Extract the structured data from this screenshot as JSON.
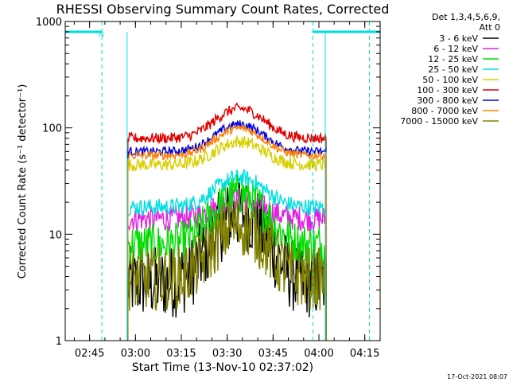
{
  "chart_data": {
    "type": "line",
    "title": "RHESSI Observing Summary Count Rates, Corrected",
    "xlabel": "Start Time (13-Nov-10 02:37:02)",
    "ylabel": "Corrected Count Rate (s⁻¹ detector⁻¹)",
    "yscale": "log",
    "ylim": [
      1,
      1000
    ],
    "xlim_minutes": [
      0,
      103
    ],
    "x_ticks": [
      {
        "m": 7.97,
        "label": "02:45"
      },
      {
        "m": 22.97,
        "label": "03:00"
      },
      {
        "m": 37.97,
        "label": "03:15"
      },
      {
        "m": 52.97,
        "label": "03:30"
      },
      {
        "m": 67.97,
        "label": "03:45"
      },
      {
        "m": 82.97,
        "label": "04:00"
      },
      {
        "m": 97.97,
        "label": "04:15"
      }
    ],
    "y_ticks": [
      {
        "v": 1,
        "label": "1"
      },
      {
        "v": 10,
        "label": "10"
      },
      {
        "v": 100,
        "label": "100"
      },
      {
        "v": 1000,
        "label": "1000"
      }
    ],
    "legend_header": [
      "Det 1,3,4,5,6,9,",
      "Att 0"
    ],
    "series": [
      {
        "name": "3 - 6 keV",
        "color": "#000000",
        "base": 3.5,
        "peak": 4.5,
        "noise": 0.35
      },
      {
        "name": "6 - 12 keV",
        "color": "#e020e0",
        "base": 14,
        "peak": 1.5,
        "noise": 0.12
      },
      {
        "name": "12 - 25 keV",
        "color": "#00dd00",
        "base": 8,
        "peak": 3,
        "noise": 0.2
      },
      {
        "name": "25 - 50 keV",
        "color": "#00e0e0",
        "base": 18,
        "peak": 1.9,
        "noise": 0.08
      },
      {
        "name": "50 - 100 keV",
        "color": "#d8d000",
        "base": 45,
        "peak": 1.65,
        "noise": 0.06
      },
      {
        "name": "100 - 300 keV",
        "color": "#e00000",
        "base": 80,
        "peak": 1.9,
        "noise": 0.05
      },
      {
        "name": "300 - 800 keV",
        "color": "#0000e0",
        "base": 60,
        "peak": 1.8,
        "noise": 0.04
      },
      {
        "name": "800 - 7000 keV",
        "color": "#ff8000",
        "base": 55,
        "peak": 1.8,
        "noise": 0.04
      },
      {
        "name": "7000 - 15000 keV",
        "color": "#808000",
        "base": 3.8,
        "peak": 3.2,
        "noise": 0.3
      }
    ],
    "data_interval_minutes": [
      20.5,
      85.3
    ],
    "flare_peak_minutes": 57,
    "flare_width_minutes": 10,
    "saa_flag_label": "N",
    "saa_flag_color": "#00dddd",
    "saa_flag_intervals_minutes": [
      [
        0,
        12
      ],
      [
        81,
        103
      ]
    ],
    "saa_marker_minutes": [
      12,
      81,
      99.5
    ],
    "grid": false
  },
  "footer": {
    "timestamp": "17-Oct-2021 08:07"
  }
}
